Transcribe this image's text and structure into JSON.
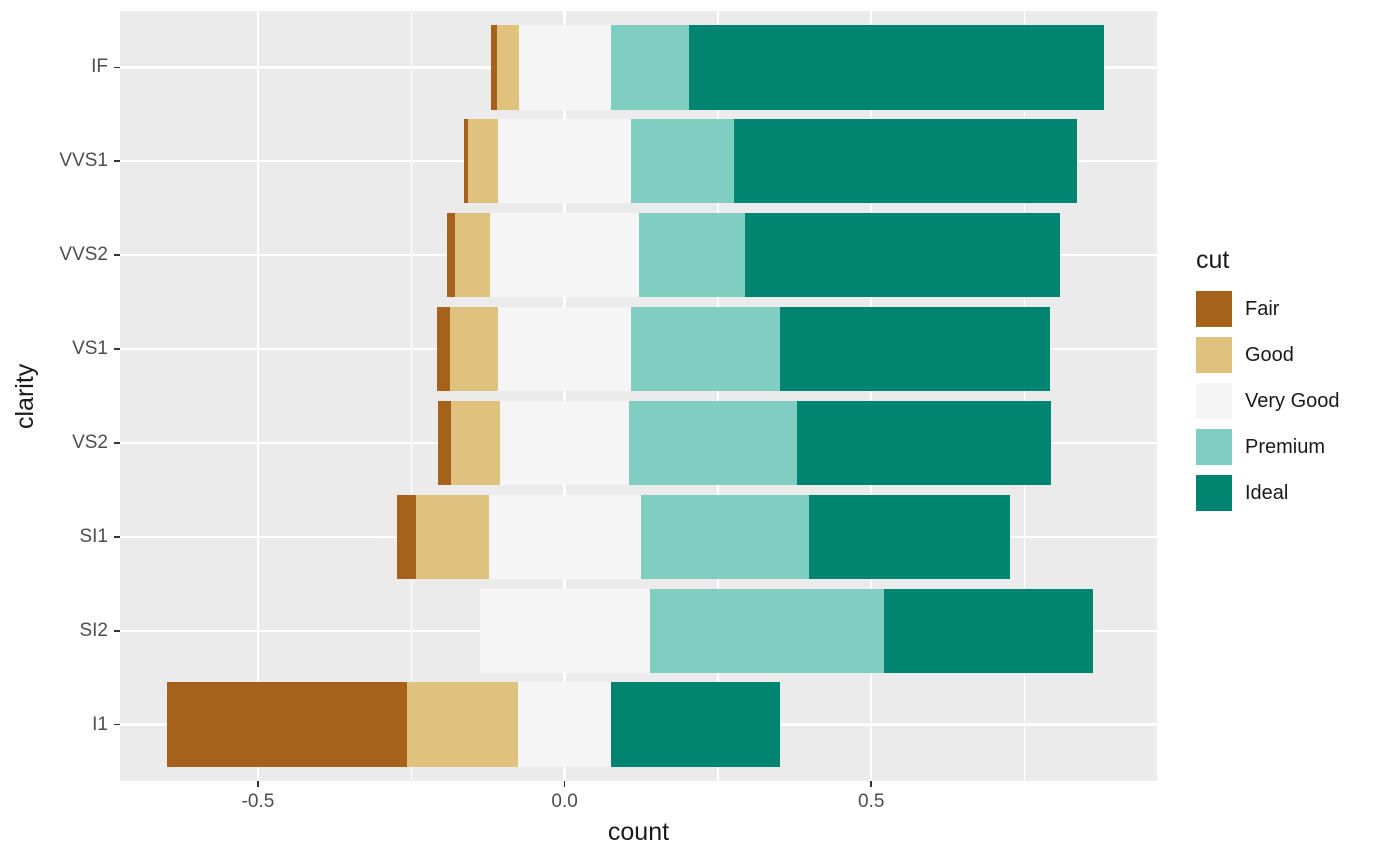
{
  "chart_data": {
    "type": "bar",
    "variant": "diverging_stacked_horizontal",
    "title": "",
    "xlabel": "count",
    "ylabel": "clarity",
    "categories": [
      "IF",
      "VVS1",
      "VVS2",
      "VS1",
      "VS2",
      "SI1",
      "SI2",
      "I1"
    ],
    "series": [
      {
        "name": "Fair",
        "color": "#A6611A",
        "values": [
          0.01,
          0.006,
          0.014,
          0.021,
          0.021,
          0.031,
          0,
          0.391
        ]
      },
      {
        "name": "Good",
        "color": "#DFC27D",
        "values": [
          0.035,
          0.05,
          0.056,
          0.079,
          0.08,
          0.119,
          0,
          0.182
        ]
      },
      {
        "name": "Very Good",
        "color": "#F5F5F5",
        "values": [
          0.15,
          0.216,
          0.244,
          0.217,
          0.211,
          0.248,
          0.277,
          0.151
        ]
      },
      {
        "name": "Premium",
        "color": "#80CDC1",
        "values": [
          0.128,
          0.168,
          0.172,
          0.243,
          0.274,
          0.274,
          0.383,
          0
        ]
      },
      {
        "name": "Ideal",
        "color": "#018571",
        "values": [
          0.677,
          0.56,
          0.514,
          0.44,
          0.414,
          0.328,
          0.34,
          0.276
        ]
      }
    ],
    "centering": "each bar diverges around the midpoint of the 'Very Good' segment (x = 0)",
    "x_ticks": [
      {
        "value": -0.5,
        "label": "-0.5"
      },
      {
        "value": 0.0,
        "label": "0.0"
      },
      {
        "value": 0.5,
        "label": "0.5"
      }
    ],
    "x_minor_ticks": [
      -0.25,
      0.25,
      0.75
    ],
    "xlim": [
      -0.725,
      0.966
    ],
    "bar_width_fraction": 0.9,
    "legend": {
      "title": "cut",
      "position": "right",
      "entries": [
        "Fair",
        "Good",
        "Very Good",
        "Premium",
        "Ideal"
      ]
    },
    "panel_background": "#EBEBEB",
    "grid_color": "#FFFFFF",
    "tick_color": "#333333",
    "axis_text_color": "#4D4D4D"
  }
}
